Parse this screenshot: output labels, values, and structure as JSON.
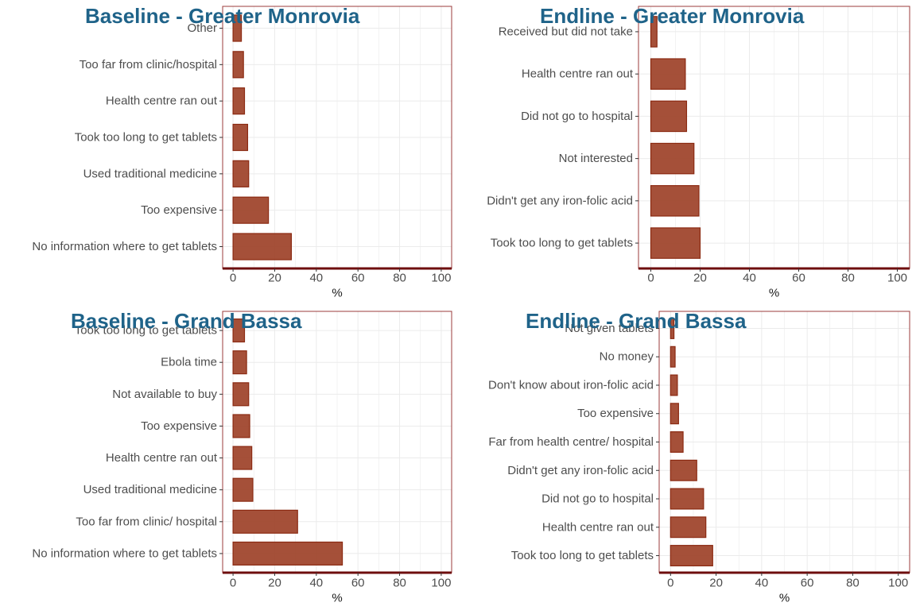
{
  "chart_data": [
    {
      "type": "bar",
      "orientation": "horizontal",
      "title": "Baseline - Greater Monrovia",
      "xlabel": "%",
      "xlim": [
        0,
        100
      ],
      "xticks": [
        0,
        20,
        40,
        60,
        80,
        100
      ],
      "categories": [
        "Other",
        "Too far from clinic/hospital",
        "Health centre ran out",
        "Took too long to get tablets",
        "Used traditional medicine",
        "Too expensive",
        "No information where to get tablets"
      ],
      "values": [
        4,
        5,
        5.5,
        7,
        7.5,
        17,
        28
      ]
    },
    {
      "type": "bar",
      "orientation": "horizontal",
      "title": "Endline - Greater Monrovia",
      "xlabel": "%",
      "xlim": [
        0,
        100
      ],
      "xticks": [
        0,
        20,
        40,
        60,
        80,
        100
      ],
      "categories": [
        "Received but did not take",
        "Health centre ran out",
        "Did not go to hospital",
        "Not interested",
        "Didn't get any iron-folic acid",
        "Took too long to get tablets"
      ],
      "values": [
        2.5,
        14,
        14.5,
        17.5,
        19.5,
        20
      ]
    },
    {
      "type": "bar",
      "orientation": "horizontal",
      "title": "Baseline - Grand Bassa",
      "xlabel": "%",
      "xlim": [
        0,
        100
      ],
      "xticks": [
        0,
        20,
        40,
        60,
        80,
        100
      ],
      "categories": [
        "Took too long to get tablets",
        "Ebola time",
        "Not available to buy",
        "Too expensive",
        "Health centre ran out",
        "Used traditional medicine",
        "Too far from clinic/ hospital",
        "No information where to get tablets"
      ],
      "values": [
        5.5,
        6.5,
        7.5,
        8,
        9,
        9.5,
        31,
        52.5
      ]
    },
    {
      "type": "bar",
      "orientation": "horizontal",
      "title": "Endline - Grand Bassa",
      "xlabel": "%",
      "xlim": [
        0,
        100
      ],
      "xticks": [
        0,
        20,
        40,
        60,
        80,
        100
      ],
      "categories": [
        "Not given tablets",
        "No money",
        "Don't know about iron-folic acid",
        "Too expensive",
        "Far from health centre/ hospital",
        "Didn't get any iron-folic acid",
        "Did not go to hospital",
        "Health centre ran out",
        "Took too long to get tablets"
      ],
      "values": [
        1.5,
        2,
        3,
        3.5,
        5.5,
        11.5,
        14.5,
        15.5,
        18.5
      ]
    }
  ],
  "colors": {
    "bar_fill": "#a0472e",
    "bar_stroke": "#8b2a12",
    "panel_border": "#9b3b3b",
    "axis_line": "#6e0e0e",
    "grid": "#ebebeb",
    "title": "#1f6389"
  }
}
